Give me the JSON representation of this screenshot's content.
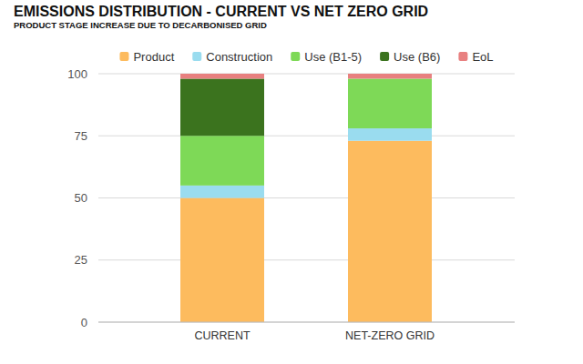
{
  "chart_data": {
    "type": "bar",
    "title": "EMISSIONS DISTRIBUTION - CURRENT VS NET ZERO GRID",
    "subtitle": "PRODUCT STAGE INCREASE DUE TO DECARBONISED GRID",
    "categories": [
      "CURRENT",
      "NET-ZERO GRID"
    ],
    "series": [
      {
        "name": "Product",
        "color": "#fdbb5e",
        "values": [
          50,
          73
        ]
      },
      {
        "name": "Construction",
        "color": "#9adcef",
        "values": [
          5,
          5
        ]
      },
      {
        "name": "Use (B1-5)",
        "color": "#7ed957",
        "values": [
          20,
          20
        ]
      },
      {
        "name": "Use (B6)",
        "color": "#3b731e",
        "values": [
          23,
          0
        ]
      },
      {
        "name": "EoL",
        "color": "#e88080",
        "values": [
          2,
          2
        ]
      }
    ],
    "ylim": [
      0,
      100
    ],
    "yticks": [
      0,
      25,
      50,
      75,
      100
    ],
    "stacked": true,
    "grid": true,
    "legend": "top"
  }
}
